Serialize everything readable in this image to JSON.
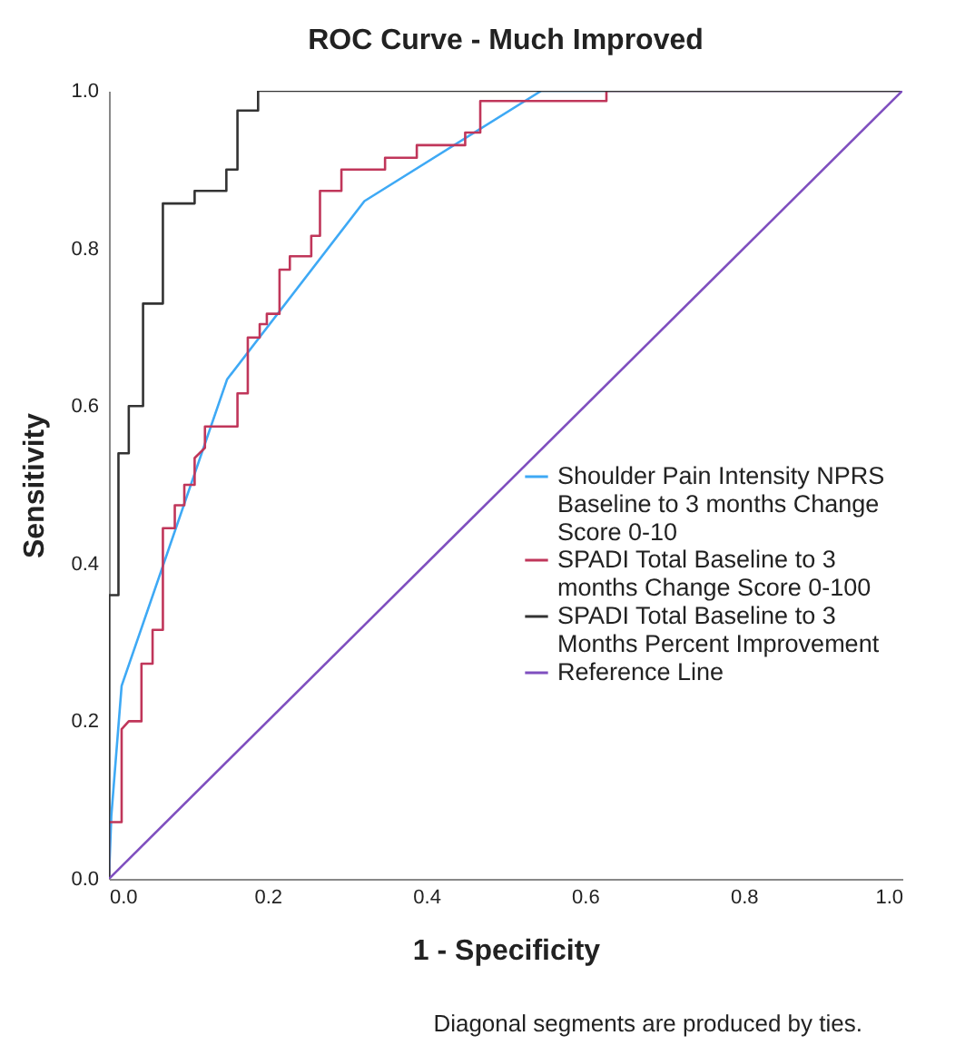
{
  "chart_data": {
    "type": "line",
    "title": "ROC Curve - Much Improved",
    "xlabel": "1 - Specificity",
    "ylabel": "Sensitivity",
    "annotations": [
      "Diagonal segments are produced by ties."
    ],
    "xlim": [
      0,
      1
    ],
    "ylim": [
      0,
      1
    ],
    "xticks": [
      {
        "value": 0,
        "label": "0.0"
      },
      {
        "value": 0.2,
        "label": "0.2"
      },
      {
        "value": 0.4,
        "label": "0.4"
      },
      {
        "value": 0.6,
        "label": "0.6"
      },
      {
        "value": 0.8,
        "label": "0.8"
      },
      {
        "value": 1,
        "label": "1.0"
      }
    ],
    "yticks": [
      {
        "value": 0,
        "label": "0.0"
      },
      {
        "value": 0.2,
        "label": "0.2"
      },
      {
        "value": 0.4,
        "label": "0.4"
      },
      {
        "value": 0.6,
        "label": "0.6"
      },
      {
        "value": 0.8,
        "label": "0.8"
      },
      {
        "value": 1,
        "label": "1.0"
      }
    ],
    "grid": false,
    "legend": "right",
    "marker": "none",
    "line_style": "solid",
    "series": [
      {
        "name": "Shoulder Pain Intensity NPRS Baseline to 3 months Change Score 0-10",
        "color": "#3ea9f5",
        "x": [
          0,
          0.003,
          0.016,
          0.149,
          0.322,
          0.545,
          1
        ],
        "values": [
          0,
          0.08,
          0.245,
          0.634,
          0.86,
          1,
          1
        ]
      },
      {
        "name": "SPADI Total Baseline to 3 months Change Score 0-100",
        "color": "#c0365a",
        "x": [
          0,
          0,
          0.016,
          0.016,
          0.025,
          0.041,
          0.041,
          0.055,
          0.055,
          0.068,
          0.068,
          0.083,
          0.083,
          0.095,
          0.095,
          0.108,
          0.108,
          0.121,
          0.121,
          0.162,
          0.162,
          0.175,
          0.175,
          0.19,
          0.19,
          0.199,
          0.199,
          0.215,
          0.215,
          0.228,
          0.228,
          0.255,
          0.255,
          0.266,
          0.266,
          0.293,
          0.293,
          0.348,
          0.348,
          0.388,
          0.388,
          0.449,
          0.449,
          0.468,
          0.468,
          0.627,
          0.627,
          1
        ],
        "values": [
          0,
          0.072,
          0.072,
          0.19,
          0.2,
          0.2,
          0.273,
          0.273,
          0.316,
          0.316,
          0.445,
          0.445,
          0.474,
          0.474,
          0.5,
          0.5,
          0.534,
          0.547,
          0.574,
          0.574,
          0.616,
          0.616,
          0.687,
          0.687,
          0.704,
          0.704,
          0.717,
          0.717,
          0.773,
          0.773,
          0.79,
          0.79,
          0.816,
          0.816,
          0.873,
          0.873,
          0.9,
          0.9,
          0.915,
          0.915,
          0.931,
          0.931,
          0.947,
          0.947,
          0.987,
          0.987,
          1,
          1
        ]
      },
      {
        "name": "SPADI Total Baseline to 3 Months Percent Improvement",
        "color": "#333333",
        "x": [
          0,
          0,
          0.012,
          0.012,
          0.025,
          0.025,
          0.043,
          0.043,
          0.068,
          0.068,
          0.108,
          0.108,
          0.148,
          0.148,
          0.162,
          0.162,
          0.188,
          0.188,
          1
        ],
        "values": [
          0,
          0.36,
          0.36,
          0.54,
          0.54,
          0.6,
          0.6,
          0.73,
          0.73,
          0.857,
          0.857,
          0.873,
          0.873,
          0.9,
          0.9,
          0.975,
          0.975,
          1,
          1
        ]
      },
      {
        "name": "Reference Line",
        "color": "#7f4fbf",
        "x": [
          0,
          1
        ],
        "values": [
          0,
          1
        ]
      }
    ]
  }
}
